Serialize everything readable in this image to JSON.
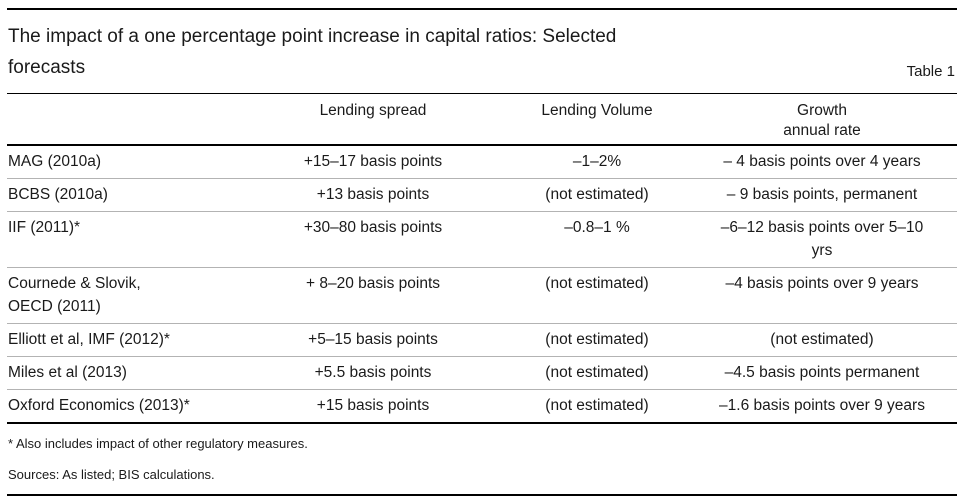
{
  "header": {
    "title": "The impact of a one percentage point increase in capital ratios: Selected\nforecasts",
    "table_label": "Table 1"
  },
  "table": {
    "columns": [
      "",
      "Lending spread",
      "Lending Volume",
      "Growth\nannual rate"
    ],
    "rows": [
      {
        "cells": [
          "MAG (2010a)",
          "+15–17 basis points",
          "–1–2%",
          "– 4 basis points over 4 years"
        ]
      },
      {
        "cells": [
          "BCBS (2010a)",
          "+13 basis points",
          "(not estimated)",
          "– 9 basis points, permanent"
        ]
      },
      {
        "cells": [
          "IIF (2011)*",
          "+30–80 basis points",
          "–0.8–1 %",
          "–6–12 basis points over 5–10\nyrs"
        ]
      },
      {
        "cells": [
          "Cournede & Slovik,\nOECD (2011)",
          "+ 8–20 basis points",
          "(not estimated)",
          "–4 basis points over 9 years"
        ]
      },
      {
        "cells": [
          "Elliott et al, IMF (2012)*",
          "+5–15 basis points",
          "(not estimated)",
          "(not estimated)"
        ]
      },
      {
        "cells": [
          "Miles et al (2013)",
          "+5.5 basis points",
          "(not estimated)",
          "–4.5 basis points permanent"
        ]
      },
      {
        "cells": [
          "Oxford Economics (2013)*",
          "+15 basis points",
          "(not estimated)",
          "–1.6 basis points over 9 years"
        ]
      }
    ]
  },
  "footnotes": {
    "asterisk": "* Also includes impact of other regulatory measures.",
    "sources": "Sources: As listed; BIS calculations."
  },
  "colors": {
    "text": "#1a1a1a",
    "rule_dark": "#000000",
    "rule_light": "#b3b3b3",
    "background": "#ffffff"
  }
}
